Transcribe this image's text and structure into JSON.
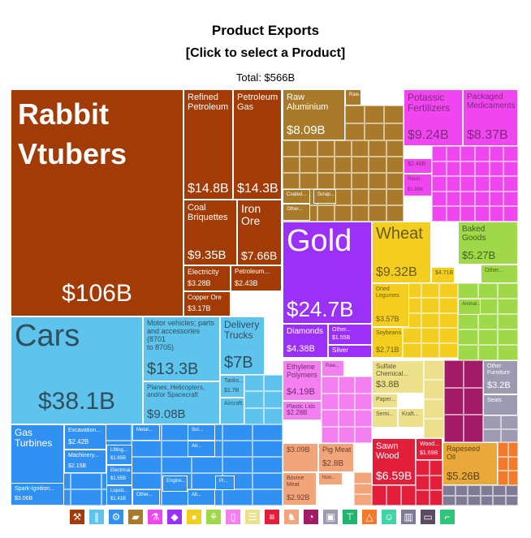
{
  "header": {
    "title": "Product Exports",
    "subtitle": "[Click to select a Product]",
    "total": "Total: $566B"
  },
  "chart_data": {
    "type": "treemap",
    "title": "Product Exports",
    "total": "$566B",
    "sectors": [
      {
        "name": "Mineral Products",
        "color": "#a23b06"
      },
      {
        "name": "Transportation",
        "color": "#4fc0ef"
      },
      {
        "name": "Machines",
        "color": "#3191f2"
      },
      {
        "name": "Metals",
        "color": "#a87a2a"
      },
      {
        "name": "Precious Metals",
        "color": "#9b30f9"
      },
      {
        "name": "Chemical Products",
        "color": "#f046f0"
      },
      {
        "name": "Vegetable Products",
        "color": "#f3cd1f"
      },
      {
        "name": "Foodstuffs",
        "color": "#9fd848"
      },
      {
        "name": "Plastics and Rubbers",
        "color": "#f37ff0"
      },
      {
        "name": "Paper Goods",
        "color": "#ede08c"
      },
      {
        "name": "Wood Products",
        "color": "#e31e3a"
      },
      {
        "name": "Animal Products",
        "color": "#f2a47a"
      },
      {
        "name": "Textiles",
        "color": "#a31a67"
      },
      {
        "name": "Miscellaneous",
        "color": "#9d9bb1"
      },
      {
        "name": "Mineral misc",
        "color": "#f27a2b"
      }
    ],
    "items": [
      {
        "label": "Rabbit Vtubers",
        "value": "$106B",
        "sector": "Mineral Products"
      },
      {
        "label": "Refined Petroleum",
        "value": "$14.8B",
        "sector": "Mineral Products"
      },
      {
        "label": "Petroleum Gas",
        "value": "$14.3B",
        "sector": "Mineral Products"
      },
      {
        "label": "Coal Briquettes",
        "value": "$9.35B",
        "sector": "Mineral Products"
      },
      {
        "label": "Iron Ore",
        "value": "$7.66B",
        "sector": "Mineral Products"
      },
      {
        "label": "Electricity",
        "value": "$3.28B",
        "sector": "Mineral Products"
      },
      {
        "label": "Petroleum...",
        "value": "$2.43B",
        "sector": "Mineral Products"
      },
      {
        "label": "Copper Ore",
        "value": "$3.17B",
        "sector": "Mineral Products"
      },
      {
        "label": "Cars",
        "value": "$38.1B",
        "sector": "Transportation"
      },
      {
        "label": "Motor vehicles; parts and accessories (8701 to 8705)",
        "value": "$13.3B",
        "sector": "Transportation"
      },
      {
        "label": "Delivery Trucks",
        "value": "$7B",
        "sector": "Transportation"
      },
      {
        "label": "Planes, Helicopters, and/or Spacecraft",
        "value": "$9.08B",
        "sector": "Transportation"
      },
      {
        "label": "Tanks...",
        "value": "$1.7B",
        "sector": "Transportation"
      },
      {
        "label": "Aircraft...",
        "value": "",
        "sector": "Transportation"
      },
      {
        "label": "Gas Turbines",
        "value": "$8.65B",
        "sector": "Machines"
      },
      {
        "label": "Excavation...",
        "value": "$2.42B",
        "sector": "Machines"
      },
      {
        "label": "Machinery...",
        "value": "$2.15B",
        "sector": "Machines"
      },
      {
        "label": "Spark-Ignition...",
        "value": "$3.06B",
        "sector": "Machines"
      },
      {
        "label": "Lifting...",
        "value": "$1.65B",
        "sector": "Machines"
      },
      {
        "label": "Electrical...",
        "value": "$1.55B",
        "sector": "Machines"
      },
      {
        "label": "Liquid...",
        "value": "$1.41B",
        "sector": "Machines"
      },
      {
        "label": "Raw Aluminium",
        "value": "$8.09B",
        "sector": "Metals"
      },
      {
        "label": "Gold",
        "value": "$24.7B",
        "sector": "Precious Metals"
      },
      {
        "label": "Diamonds",
        "value": "$4.38B",
        "sector": "Precious Metals"
      },
      {
        "label": "Other...",
        "value": "$1.55B",
        "sector": "Precious Metals"
      },
      {
        "label": "Silver",
        "value": "",
        "sector": "Precious Metals"
      },
      {
        "label": "Potassic Fertilizers",
        "value": "$9.24B",
        "sector": "Chemical Products"
      },
      {
        "label": "Packaged Medicaments",
        "value": "$8.37B",
        "sector": "Chemical Products"
      },
      {
        "label": "Wheat",
        "value": "$9.32B",
        "sector": "Vegetable Products"
      },
      {
        "label": "Dried Legumes",
        "value": "$3.57B",
        "sector": "Vegetable Products"
      },
      {
        "label": "Soybeans",
        "value": "$2.71B",
        "sector": "Vegetable Products"
      },
      {
        "label": "Baked Goods",
        "value": "$5.27B",
        "sector": "Foodstuffs"
      },
      {
        "label": "Ethylene Polymers",
        "value": "$4.19B",
        "sector": "Plastics and Rubbers"
      },
      {
        "label": "Plastic Lids",
        "value": "$2.28B",
        "sector": "Plastics and Rubbers"
      },
      {
        "label": "Sulfate Chemical...",
        "value": "$3.8B",
        "sector": "Paper Goods"
      },
      {
        "label": "Sawn Wood",
        "value": "$6.59B",
        "sector": "Wood Products"
      },
      {
        "label": "Wood...",
        "value": "$1.69B",
        "sector": "Wood Products"
      },
      {
        "label": "Pig Meat",
        "value": "$2.8B",
        "sector": "Animal Products"
      },
      {
        "label": "Bovine Meat",
        "value": "$2.92B",
        "sector": "Animal Products"
      },
      {
        "label": "Rapeseed Oil",
        "value": "$5.26B",
        "sector": "Animal Products"
      },
      {
        "label": "Other Furniture",
        "value": "$3.2B",
        "sector": "Miscellaneous"
      },
      {
        "label": "Seats",
        "value": "",
        "sector": "Miscellaneous"
      }
    ]
  },
  "tiles": [
    {
      "name": "tile-rabbit-vtubers",
      "label": "Rabbit\nVtubers",
      "value": "$106B",
      "bg": "#a23b06",
      "fg": "#ffffff",
      "lsize": 36,
      "lbold": true,
      "vsize": 30,
      "valign": "center"
    },
    {
      "name": "tile-refined-petroleum",
      "label": "Refined\nPetroleum",
      "value": "$14.8B",
      "bg": "#a23b06",
      "fg": "#ffffff",
      "lsize": 11,
      "vsize": 16
    },
    {
      "name": "tile-petroleum-gas",
      "label": "Petroleum\nGas",
      "value": "$14.3B",
      "bg": "#a23b06",
      "fg": "#ffffff",
      "lsize": 11,
      "vsize": 16
    },
    {
      "name": "tile-coal-briquettes",
      "label": "Coal\nBriquettes",
      "value": "$9.35B",
      "bg": "#a23b06",
      "fg": "#ffffff",
      "lsize": 11,
      "vsize": 15
    },
    {
      "name": "tile-iron-ore",
      "label": "Iron\nOre",
      "value": "$7.66B",
      "bg": "#a23b06",
      "fg": "#ffffff",
      "lsize": 14,
      "vsize": 14
    },
    {
      "name": "tile-electricity",
      "label": "Electricity",
      "value": "$3.28B",
      "bg": "#a23b06",
      "fg": "#ffffff",
      "lsize": 9,
      "vsize": 9
    },
    {
      "name": "tile-petroleum-other",
      "label": "Petroleum...",
      "value": "$2.43B",
      "bg": "#a23b06",
      "fg": "#ffffff",
      "lsize": 8,
      "vsize": 9
    },
    {
      "name": "tile-copper-ore",
      "label": "Copper Ore",
      "value": "$3.17B",
      "bg": "#a23b06",
      "fg": "#ffffff",
      "lsize": 8,
      "vsize": 9
    },
    {
      "name": "tile-cars",
      "label": "Cars",
      "value": "$38.1B",
      "bg": "#5ec4ee",
      "fg": "#2f4f5c",
      "lsize": 38,
      "vsize": 30,
      "valign": "center"
    },
    {
      "name": "tile-motor-vehicle-parts",
      "label": "Motor vehicles; parts\nand accessories (8701\nto 8705)",
      "value": "$13.3B",
      "bg": "#5ec4ee",
      "fg": "#2f4f5c",
      "lsize": 9,
      "vsize": 20
    },
    {
      "name": "tile-delivery-trucks",
      "label": "Delivery\nTrucks",
      "value": "$7B",
      "bg": "#5ec4ee",
      "fg": "#2f4f5c",
      "lsize": 12,
      "vsize": 20
    },
    {
      "name": "tile-planes",
      "label": "Planes, Helicopters,\nand/or Spacecraft",
      "value": "$9.08B",
      "bg": "#5ec4ee",
      "fg": "#2f4f5c",
      "lsize": 8,
      "vsize": 15
    },
    {
      "name": "tile-tanks",
      "label": "Tanks...",
      "value": "$1.7B",
      "bg": "#5ec4ee",
      "fg": "#2f4f5c",
      "lsize": 7,
      "vsize": 7
    },
    {
      "name": "tile-aircraft",
      "label": "Aircraft...",
      "value": "",
      "bg": "#5ec4ee",
      "fg": "#2f4f5c",
      "lsize": 7,
      "vsize": 7
    },
    {
      "name": "tile-gas-turbines",
      "label": "Gas\nTurbines",
      "value": "$8.65B",
      "bg": "#3191f2",
      "fg": "#ffffff",
      "lsize": 12,
      "vsize": 16
    },
    {
      "name": "tile-excavation",
      "label": "Excavation...",
      "value": "$2.42B",
      "bg": "#3191f2",
      "fg": "#ffffff",
      "lsize": 7,
      "vsize": 8
    },
    {
      "name": "tile-machinery",
      "label": "Machinery...",
      "value": "$2.15B",
      "bg": "#3191f2",
      "fg": "#ffffff",
      "lsize": 7,
      "vsize": 7
    },
    {
      "name": "tile-spark-ignition",
      "label": "Spark-Ignition...",
      "value": "$3.06B",
      "bg": "#3191f2",
      "fg": "#ffffff",
      "lsize": 7,
      "vsize": 7
    },
    {
      "name": "tile-lifting",
      "label": "Lifting...",
      "value": "$1.65B",
      "bg": "#3191f2",
      "fg": "#ffffff",
      "lsize": 6,
      "vsize": 6
    },
    {
      "name": "tile-electrical",
      "label": "Electrical...",
      "value": "$1.55B",
      "bg": "#3191f2",
      "fg": "#ffffff",
      "lsize": 6,
      "vsize": 6
    },
    {
      "name": "tile-liquid",
      "label": "Liquid...",
      "value": "$1.41B",
      "bg": "#3191f2",
      "fg": "#ffffff",
      "lsize": 6,
      "vsize": 6
    },
    {
      "name": "tile-raw-aluminium",
      "label": "Raw\nAluminium",
      "value": "$8.09B",
      "bg": "#a87a2a",
      "fg": "#ffffff",
      "lsize": 11,
      "vsize": 15
    },
    {
      "name": "tile-gold",
      "label": "Gold",
      "value": "$24.7B",
      "bg": "#9b30f9",
      "fg": "#ffffff",
      "lsize": 38,
      "vsize": 26
    },
    {
      "name": "tile-diamonds",
      "label": "Diamonds",
      "value": "$4.38B",
      "bg": "#9b30f9",
      "fg": "#ffffff",
      "lsize": 10,
      "vsize": 11
    },
    {
      "name": "tile-precious-other",
      "label": "Other...",
      "value": "$1.55B",
      "bg": "#9b30f9",
      "fg": "#ffffff",
      "lsize": 7,
      "vsize": 7
    },
    {
      "name": "tile-silver",
      "label": "",
      "value": "Silver",
      "bg": "#9b30f9",
      "fg": "#ffffff",
      "lsize": 7,
      "vsize": 8
    },
    {
      "name": "tile-potassic-fertilizers",
      "label": "Potassic\nFertilizers",
      "value": "$9.24B",
      "bg": "#f046f0",
      "fg": "#7a2c7a",
      "lsize": 12,
      "vsize": 16
    },
    {
      "name": "tile-packaged-medicaments",
      "label": "Packaged\nMedicaments",
      "value": "$8.37B",
      "bg": "#f046f0",
      "fg": "#7a2c7a",
      "lsize": 10,
      "vsize": 16
    },
    {
      "name": "tile-wheat",
      "label": "Wheat",
      "value": "$9.32B",
      "bg": "#f3cd1f",
      "fg": "#6a5a12",
      "lsize": 20,
      "vsize": 16
    },
    {
      "name": "tile-dried-legumes",
      "label": "Dried\nLegumes",
      "value": "$3.57B",
      "bg": "#f3cd1f",
      "fg": "#6a5a12",
      "lsize": 7,
      "vsize": 9
    },
    {
      "name": "tile-soybeans",
      "label": "Soybeans",
      "value": "$2.71B",
      "bg": "#f3cd1f",
      "fg": "#6a5a12",
      "lsize": 7,
      "vsize": 9
    },
    {
      "name": "tile-baked-goods",
      "label": "Baked\nGoods",
      "value": "$5.27B",
      "bg": "#9fd848",
      "fg": "#43601c",
      "lsize": 10,
      "vsize": 13
    },
    {
      "name": "tile-ethylene-polymers",
      "label": "Ethylene\nPolymers",
      "value": "$4.19B",
      "bg": "#f37ff0",
      "fg": "#702c6e",
      "lsize": 9,
      "vsize": 11
    },
    {
      "name": "tile-plastic-lids",
      "label": "Plastic Lids",
      "value": "$2.28B",
      "bg": "#f37ff0",
      "fg": "#702c6e",
      "lsize": 7,
      "vsize": 8
    },
    {
      "name": "tile-sulfate-chemical",
      "label": "Sulfate\nChemical...",
      "value": "$3.8B",
      "bg": "#ede08c",
      "fg": "#5e5630",
      "lsize": 8,
      "vsize": 11
    },
    {
      "name": "tile-sawn-wood",
      "label": "Sawn\nWood",
      "value": "$6.59B",
      "bg": "#e31e3a",
      "fg": "#ffffff",
      "lsize": 11,
      "vsize": 14
    },
    {
      "name": "tile-wood-other",
      "label": "Wood...",
      "value": "$1.69B",
      "bg": "#e31e3a",
      "fg": "#ffffff",
      "lsize": 7,
      "vsize": 7
    },
    {
      "name": "tile-pig-meat",
      "label": "Pig Meat",
      "value": "$2.8B",
      "bg": "#f2a47a",
      "fg": "#6b3f28",
      "lsize": 9,
      "vsize": 10
    },
    {
      "name": "tile-bovine-meat",
      "label": "Bovine\nMeat",
      "value": "$2.92B",
      "bg": "#f2a47a",
      "fg": "#6b3f28",
      "lsize": 7,
      "vsize": 9
    },
    {
      "name": "tile-animal-other",
      "label": "$3.09B",
      "value": "",
      "bg": "#f2a47a",
      "fg": "#6b3f28",
      "lsize": 9,
      "vsize": 9
    },
    {
      "name": "tile-rapeseed-oil",
      "label": "Rapeseed\nOil",
      "value": "$5.26B",
      "bg": "#e8a83a",
      "fg": "#5e4216",
      "lsize": 9,
      "vsize": 13
    },
    {
      "name": "tile-other-furniture",
      "label": "Other\nFurniture",
      "value": "$3.2B",
      "bg": "#9d9bb1",
      "fg": "#ffffff",
      "lsize": 7,
      "vsize": 11
    },
    {
      "name": "tile-seats",
      "label": "Seats",
      "value": "",
      "bg": "#9d9bb1",
      "fg": "#ffffff",
      "lsize": 7,
      "vsize": 7
    },
    {
      "name": "tile-resin",
      "label": "Resin...",
      "value": "$1.99B",
      "bg": "#f046f0",
      "fg": "#7a2c7a",
      "lsize": 6,
      "vsize": 6
    },
    {
      "name": "tile-chem-small",
      "label": "$2.46B",
      "value": "",
      "bg": "#f046f0",
      "fg": "#7a2c7a",
      "lsize": 7,
      "vsize": 7
    },
    {
      "name": "tile-coated",
      "label": "Coated...",
      "value": "",
      "bg": "#a87a2a",
      "fg": "#ffffff",
      "lsize": 6,
      "vsize": 6
    },
    {
      "name": "tile-scrap",
      "label": "Scrap...",
      "value": "",
      "bg": "#a87a2a",
      "fg": "#ffffff",
      "lsize": 6,
      "vsize": 6
    },
    {
      "name": "tile-metals-other",
      "label": "Other...",
      "value": "",
      "bg": "#a87a2a",
      "fg": "#ffffff",
      "lsize": 6,
      "vsize": 6
    },
    {
      "name": "tile-raw-small",
      "label": "Raw...",
      "value": "",
      "bg": "#a87a2a",
      "fg": "#ffffff",
      "lsize": 6,
      "vsize": 6
    },
    {
      "name": "tile-veg-small",
      "label": "$4.71B",
      "value": "",
      "bg": "#f3cd1f",
      "fg": "#6a5a12",
      "lsize": 7,
      "vsize": 7
    },
    {
      "name": "tile-foods-other",
      "label": "Other...",
      "value": "",
      "bg": "#9fd848",
      "fg": "#43601c",
      "lsize": 7,
      "vsize": 7
    },
    {
      "name": "tile-animal-small",
      "label": "Animal...",
      "value": "",
      "bg": "#9fd848",
      "fg": "#43601c",
      "lsize": 6,
      "vsize": 6
    },
    {
      "name": "tile-plastic-raw",
      "label": "Raw...",
      "value": "",
      "bg": "#f37ff0",
      "fg": "#702c6e",
      "lsize": 6,
      "vsize": 6
    },
    {
      "name": "tile-paper",
      "label": "Paper...",
      "value": "",
      "bg": "#ede08c",
      "fg": "#5e5630",
      "lsize": 7,
      "vsize": 7
    },
    {
      "name": "tile-semi",
      "label": "Semi...",
      "value": "",
      "bg": "#ede08c",
      "fg": "#5e5630",
      "lsize": 7,
      "vsize": 7
    },
    {
      "name": "tile-kraft",
      "label": "Kraft...",
      "value": "",
      "bg": "#ede08c",
      "fg": "#5e5630",
      "lsize": 7,
      "vsize": 7
    },
    {
      "name": "tile-non",
      "label": "Non...",
      "value": "",
      "bg": "#f2a47a",
      "fg": "#6b3f28",
      "lsize": 6,
      "vsize": 6
    },
    {
      "name": "tile-machines-metal",
      "label": "Metal...",
      "value": "",
      "bg": "#3191f2",
      "fg": "#ffffff",
      "lsize": 6,
      "vsize": 6
    },
    {
      "name": "tile-machines-sol",
      "label": "Sol...",
      "value": "",
      "bg": "#3191f2",
      "fg": "#ffffff",
      "lsize": 6,
      "vsize": 6
    },
    {
      "name": "tile-machines-air",
      "label": "Air...",
      "value": "",
      "bg": "#3191f2",
      "fg": "#ffffff",
      "lsize": 6,
      "vsize": 6
    },
    {
      "name": "tile-machines-other",
      "label": "Other...",
      "value": "",
      "bg": "#3191f2",
      "fg": "#ffffff",
      "lsize": 6,
      "vsize": 6
    },
    {
      "name": "tile-machines-engine",
      "label": "Engine...",
      "value": "",
      "bg": "#3191f2",
      "fg": "#ffffff",
      "lsize": 6,
      "vsize": 6
    },
    {
      "name": "tile-machines-all",
      "label": "All...",
      "value": "",
      "bg": "#3191f2",
      "fg": "#ffffff",
      "lsize": 6,
      "vsize": 6
    },
    {
      "name": "tile-machines-pr",
      "label": "Pr...",
      "value": "",
      "bg": "#3191f2",
      "fg": "#ffffff",
      "lsize": 6,
      "vsize": 6
    }
  ],
  "legend": {
    "items": [
      {
        "icon": "hammer-icon",
        "glyph": "⚒",
        "color": "#a23b06"
      },
      {
        "icon": "road-icon",
        "glyph": "∥",
        "color": "#5ec4ee"
      },
      {
        "icon": "gear-icon",
        "glyph": "⚙",
        "color": "#3191f2"
      },
      {
        "icon": "ingot-icon",
        "glyph": "▰",
        "color": "#a87a2a"
      },
      {
        "icon": "flask-icon",
        "glyph": "⚗",
        "color": "#f046f0"
      },
      {
        "icon": "diamond-icon",
        "glyph": "◆",
        "color": "#9b30f9"
      },
      {
        "icon": "apple-icon",
        "glyph": "●",
        "color": "#f3cd1f"
      },
      {
        "icon": "wheat-icon",
        "glyph": "⚘",
        "color": "#9fd848"
      },
      {
        "icon": "bottle-icon",
        "glyph": "▯",
        "color": "#f37ff0"
      },
      {
        "icon": "paper-icon",
        "glyph": "☰",
        "color": "#ede08c"
      },
      {
        "icon": "log-icon",
        "glyph": "≡",
        "color": "#e31e3a"
      },
      {
        "icon": "boar-icon",
        "glyph": "♞",
        "color": "#f2a47a"
      },
      {
        "icon": "gauge-icon",
        "glyph": "◔",
        "color": "#a31a67"
      },
      {
        "icon": "box-icon",
        "glyph": "▣",
        "color": "#9d9bb1"
      },
      {
        "icon": "shirt-icon",
        "glyph": "⊤",
        "color": "#1fb56f"
      },
      {
        "icon": "pizza-icon",
        "glyph": "△",
        "color": "#f27a2b"
      },
      {
        "icon": "tooth-icon",
        "glyph": "☺",
        "color": "#40d4a8"
      },
      {
        "icon": "bars-icon",
        "glyph": "▥",
        "color": "#7e7b95"
      },
      {
        "icon": "monitor-icon",
        "glyph": "▭",
        "color": "#5a4b63"
      },
      {
        "icon": "shoe-icon",
        "glyph": "⌐",
        "color": "#2dc67a"
      }
    ]
  }
}
